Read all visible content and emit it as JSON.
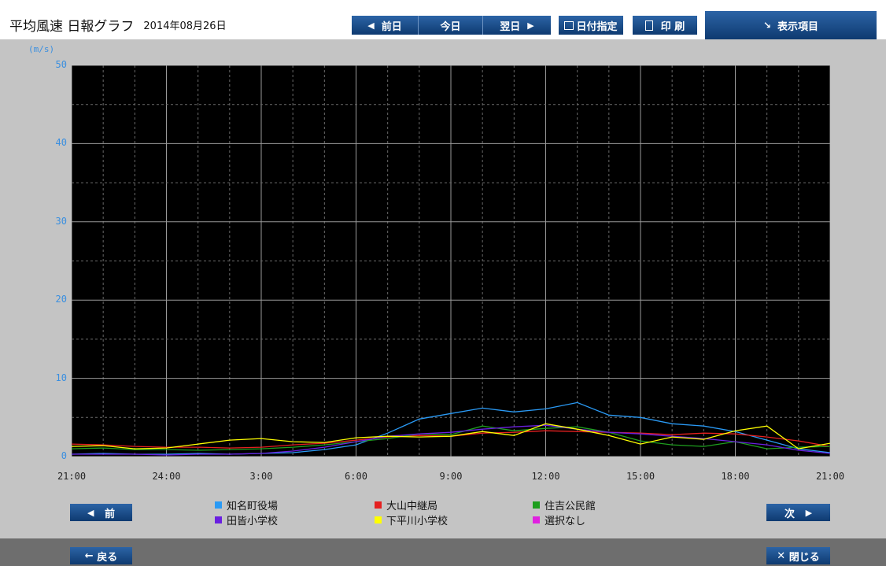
{
  "header": {
    "title": "平均風速 日報グラフ",
    "date": "2014年08月26日",
    "prev_day": "前日",
    "today": "今日",
    "next_day": "翌日",
    "date_select": "日付指定",
    "print": "印 刷",
    "display_items": "表示項目"
  },
  "colors": {
    "accent": "#1c4e8c",
    "axis_label": "#3a8fe0",
    "plot_bg": "#000000"
  },
  "icons": {
    "prev": "triangle-left-icon",
    "next": "triangle-right-icon",
    "calendar": "calendar-icon",
    "print": "printer-icon",
    "display_items": "arrow-down-right-icon",
    "back": "arrow-left-icon",
    "close": "x-icon"
  },
  "nav": {
    "prev_label": "前",
    "next_label": "次",
    "back_label": "戻る",
    "close_label": "閉じる"
  },
  "chart_data": {
    "type": "line",
    "ylabel": "(m/s)",
    "ylim": [
      0,
      50
    ],
    "yticks": [
      "0",
      "10",
      "20",
      "30",
      "40",
      "50"
    ],
    "x_tick_labels": [
      "21:00",
      "24:00",
      "3:00",
      "6:00",
      "9:00",
      "12:00",
      "15:00",
      "18:00",
      "21:00"
    ],
    "x": [
      "21:00",
      "22:00",
      "23:00",
      "24:00",
      "1:00",
      "2:00",
      "3:00",
      "4:00",
      "5:00",
      "6:00",
      "7:00",
      "8:00",
      "9:00",
      "10:00",
      "11:00",
      "12:00",
      "13:00",
      "14:00",
      "15:00",
      "16:00",
      "17:00",
      "18:00",
      "19:00",
      "20:00",
      "21:00"
    ],
    "grid": true,
    "series": [
      {
        "name": "知名町役場",
        "color": "#2a9af5",
        "values": [
          0.3,
          0.4,
          0.3,
          0.3,
          0.4,
          0.3,
          0.4,
          0.5,
          0.9,
          1.5,
          3.0,
          4.8,
          5.5,
          6.2,
          5.7,
          6.1,
          6.9,
          5.3,
          5.0,
          4.2,
          3.9,
          3.2,
          2.1,
          1.0,
          0.5
        ]
      },
      {
        "name": "大山中継局",
        "color": "#e52020",
        "values": [
          1.6,
          1.5,
          1.3,
          1.2,
          1.2,
          1.1,
          1.2,
          1.5,
          1.7,
          2.1,
          2.5,
          2.7,
          2.6,
          3.0,
          3.1,
          3.3,
          3.2,
          3.1,
          3.0,
          2.8,
          3.0,
          2.9,
          2.5,
          2.0,
          1.3
        ]
      },
      {
        "name": "住吉公民館",
        "color": "#1e9e1e",
        "values": [
          1.0,
          1.1,
          0.9,
          0.9,
          0.8,
          0.9,
          1.0,
          1.2,
          1.5,
          1.9,
          2.3,
          2.9,
          2.8,
          3.9,
          3.3,
          3.6,
          3.8,
          3.1,
          2.0,
          1.5,
          1.3,
          1.9,
          1.0,
          1.2,
          1.3
        ]
      },
      {
        "name": "田皆小学校",
        "color": "#6a1fe0",
        "values": [
          0.3,
          0.3,
          0.3,
          0.2,
          0.3,
          0.3,
          0.4,
          0.7,
          1.2,
          1.9,
          2.6,
          2.9,
          3.1,
          3.5,
          3.8,
          4.0,
          3.5,
          3.1,
          2.9,
          2.6,
          2.3,
          1.9,
          1.5,
          0.8,
          0.4
        ]
      },
      {
        "name": "下平川小学校",
        "color": "#ffff00",
        "values": [
          1.3,
          1.4,
          1.0,
          1.1,
          1.6,
          2.1,
          2.3,
          1.9,
          1.8,
          2.4,
          2.6,
          2.5,
          2.6,
          3.2,
          2.7,
          4.2,
          3.5,
          2.7,
          1.6,
          2.5,
          2.2,
          3.3,
          3.9,
          1.0,
          1.7
        ]
      }
    ],
    "legend_extra": {
      "name": "選択なし",
      "color": "#e020e0"
    }
  }
}
